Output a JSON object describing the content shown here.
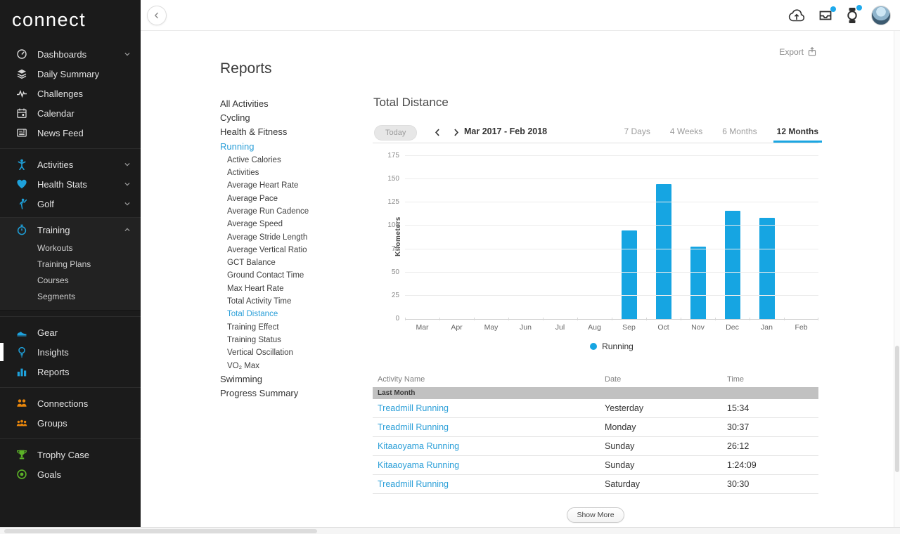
{
  "brand": {
    "logo": "connect"
  },
  "sidebar": {
    "groups": [
      {
        "items": [
          {
            "label": "Dashboards",
            "icon": "gauge",
            "color": "gray",
            "chevron": "down"
          },
          {
            "label": "Daily Summary",
            "icon": "layers",
            "color": "gray"
          },
          {
            "label": "Challenges",
            "icon": "pulse",
            "color": "gray"
          },
          {
            "label": "Calendar",
            "icon": "calendar",
            "color": "gray"
          },
          {
            "label": "News Feed",
            "icon": "news",
            "color": "gray"
          }
        ]
      },
      {
        "items": [
          {
            "label": "Activities",
            "icon": "person",
            "color": "blue",
            "chevron": "down"
          },
          {
            "label": "Health Stats",
            "icon": "heart",
            "color": "blue",
            "chevron": "down"
          },
          {
            "label": "Golf",
            "icon": "golfer",
            "color": "blue",
            "chevron": "down"
          },
          {
            "label": "Training",
            "icon": "stopwatch",
            "color": "blue",
            "chevron": "up",
            "subitems": [
              "Workouts",
              "Training Plans",
              "Courses",
              "Segments"
            ]
          }
        ]
      },
      {
        "items": [
          {
            "label": "Gear",
            "icon": "shoe",
            "color": "blue"
          },
          {
            "label": "Insights",
            "icon": "bulb",
            "color": "blue",
            "active": true
          },
          {
            "label": "Reports",
            "icon": "bar-chart",
            "color": "blue"
          }
        ]
      },
      {
        "items": [
          {
            "label": "Connections",
            "icon": "people",
            "color": "orange"
          },
          {
            "label": "Groups",
            "icon": "group",
            "color": "orange"
          }
        ]
      },
      {
        "items": [
          {
            "label": "Trophy Case",
            "icon": "trophy",
            "color": "green"
          },
          {
            "label": "Goals",
            "icon": "target",
            "color": "green"
          }
        ]
      }
    ]
  },
  "page": {
    "title": "Reports",
    "export_label": "Export"
  },
  "reports_nav": {
    "items": [
      {
        "label": "All Activities"
      },
      {
        "label": "Cycling"
      },
      {
        "label": "Health & Fitness"
      },
      {
        "label": "Running",
        "active": true,
        "children": [
          {
            "label": "Active Calories"
          },
          {
            "label": "Activities"
          },
          {
            "label": "Average Heart Rate"
          },
          {
            "label": "Average Pace"
          },
          {
            "label": "Average Run Cadence"
          },
          {
            "label": "Average Speed"
          },
          {
            "label": "Average Stride Length"
          },
          {
            "label": "Average Vertical Ratio"
          },
          {
            "label": "GCT Balance"
          },
          {
            "label": "Ground Contact Time"
          },
          {
            "label": "Max Heart Rate"
          },
          {
            "label": "Total Activity Time"
          },
          {
            "label": "Total Distance",
            "active": true
          },
          {
            "label": "Training Effect"
          },
          {
            "label": "Training Status"
          },
          {
            "label": "Vertical Oscillation"
          },
          {
            "label": "VO₂ Max"
          }
        ]
      },
      {
        "label": "Swimming"
      },
      {
        "label": "Progress Summary"
      }
    ]
  },
  "chart": {
    "title": "Total Distance",
    "toolbar": {
      "today_label": "Today",
      "range_label": "Mar 2017 - Feb 2018",
      "tabs": [
        {
          "label": "7 Days"
        },
        {
          "label": "4 Weeks"
        },
        {
          "label": "6 Months"
        },
        {
          "label": "12 Months",
          "active": true
        }
      ]
    }
  },
  "chart_data": {
    "type": "bar",
    "title": "Total Distance",
    "categories": [
      "Mar",
      "Apr",
      "May",
      "Jun",
      "Jul",
      "Aug",
      "Sep",
      "Oct",
      "Nov",
      "Dec",
      "Jan",
      "Feb"
    ],
    "values": [
      0,
      0,
      0,
      0,
      0,
      0,
      95,
      145,
      78,
      116,
      109,
      0
    ],
    "xlabel": "",
    "ylabel": "Kilometers",
    "ylim": [
      0,
      175
    ],
    "yticks": [
      0,
      25,
      50,
      75,
      100,
      125,
      150,
      175
    ],
    "grid": true,
    "bar_color": "#16a5e2",
    "legend_position": "bottom",
    "legend": [
      {
        "label": "Running",
        "color": "#16a5e2"
      }
    ]
  },
  "table": {
    "columns": [
      "Activity Name",
      "Date",
      "Time"
    ],
    "section_label": "Last Month",
    "rows": [
      {
        "name": "Treadmill Running",
        "date": "Yesterday",
        "time": "15:34"
      },
      {
        "name": "Treadmill Running",
        "date": "Monday",
        "time": "30:37"
      },
      {
        "name": "Kitaaoyama Running",
        "date": "Sunday",
        "time": "26:12"
      },
      {
        "name": "Kitaaoyama Running",
        "date": "Sunday",
        "time": "1:24:09"
      },
      {
        "name": "Treadmill Running",
        "date": "Saturday",
        "time": "30:30"
      }
    ],
    "show_more_label": "Show More"
  },
  "colors": {
    "accent": "#16a5e2",
    "link": "#2b9fd8",
    "sidebar_bg": "#1b1b1b",
    "orange": "#e8860c",
    "green": "#5cb327",
    "badge": "#1da9ec"
  }
}
